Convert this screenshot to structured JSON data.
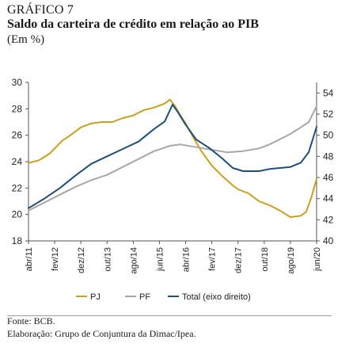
{
  "header": {
    "label": "GRÁFICO 7",
    "title": "Saldo da carteira de crédito em relação ao PIB",
    "subtitle": "(Em %)"
  },
  "footer": {
    "source": "Fonte: BCB.",
    "elaboration": "Elaboração: Grupo de Conjuntura da Dimac/Ipea."
  },
  "chart_data": {
    "type": "line",
    "x_tick_labels": [
      "abr/11",
      "fev/12",
      "dez/12",
      "out/13",
      "ago/14",
      "jun/15",
      "abr/16",
      "fev/17",
      "dez/17",
      "out/18",
      "ago/19",
      "jun/20"
    ],
    "x_tick_months": [
      "2011-04",
      "2012-02",
      "2012-12",
      "2013-10",
      "2014-08",
      "2015-06",
      "2016-04",
      "2017-02",
      "2017-12",
      "2018-10",
      "2019-08",
      "2020-06"
    ],
    "x_range": [
      "2011-04",
      "2020-06"
    ],
    "left_axis": {
      "ylim": [
        18,
        30
      ],
      "ticks": [
        18,
        20,
        22,
        24,
        26,
        28,
        30
      ]
    },
    "right_axis": {
      "ylim": [
        40,
        55
      ],
      "ticks": [
        40,
        42,
        44,
        46,
        48,
        50,
        52,
        54
      ]
    },
    "grid": false,
    "legend_position": "bottom",
    "series": [
      {
        "name": "PJ",
        "axis": "left",
        "color": "#c8a020",
        "points": [
          [
            "2011-04",
            23.9
          ],
          [
            "2011-08",
            24.1
          ],
          [
            "2011-12",
            24.6
          ],
          [
            "2012-02",
            25.0
          ],
          [
            "2012-05",
            25.6
          ],
          [
            "2012-08",
            26.0
          ],
          [
            "2012-12",
            26.6
          ],
          [
            "2013-04",
            26.9
          ],
          [
            "2013-08",
            27.0
          ],
          [
            "2013-12",
            27.0
          ],
          [
            "2014-04",
            27.3
          ],
          [
            "2014-08",
            27.5
          ],
          [
            "2014-12",
            27.9
          ],
          [
            "2015-04",
            28.1
          ],
          [
            "2015-08",
            28.4
          ],
          [
            "2015-10",
            28.7
          ],
          [
            "2015-12",
            28.2
          ],
          [
            "2016-02",
            27.5
          ],
          [
            "2016-04",
            26.9
          ],
          [
            "2016-07",
            25.8
          ],
          [
            "2016-10",
            24.8
          ],
          [
            "2017-02",
            23.7
          ],
          [
            "2017-06",
            22.9
          ],
          [
            "2017-10",
            22.2
          ],
          [
            "2017-12",
            21.9
          ],
          [
            "2018-04",
            21.6
          ],
          [
            "2018-08",
            21.0
          ],
          [
            "2018-12",
            20.7
          ],
          [
            "2019-04",
            20.3
          ],
          [
            "2019-08",
            19.8
          ],
          [
            "2019-12",
            19.9
          ],
          [
            "2020-02",
            20.2
          ],
          [
            "2020-04",
            21.3
          ],
          [
            "2020-06",
            22.7
          ]
        ]
      },
      {
        "name": "PF",
        "axis": "left",
        "color": "#a8a8a8",
        "points": [
          [
            "2011-04",
            20.3
          ],
          [
            "2011-10",
            20.9
          ],
          [
            "2012-04",
            21.5
          ],
          [
            "2012-10",
            22.1
          ],
          [
            "2013-04",
            22.6
          ],
          [
            "2013-10",
            23.0
          ],
          [
            "2014-04",
            23.6
          ],
          [
            "2014-10",
            24.2
          ],
          [
            "2015-04",
            24.8
          ],
          [
            "2015-10",
            25.2
          ],
          [
            "2016-02",
            25.3
          ],
          [
            "2016-08",
            25.1
          ],
          [
            "2017-02",
            24.9
          ],
          [
            "2017-08",
            24.7
          ],
          [
            "2018-02",
            24.8
          ],
          [
            "2018-08",
            25.0
          ],
          [
            "2018-12",
            25.3
          ],
          [
            "2019-04",
            25.7
          ],
          [
            "2019-08",
            26.1
          ],
          [
            "2019-12",
            26.6
          ],
          [
            "2020-03",
            27.0
          ],
          [
            "2020-06",
            28.2
          ]
        ]
      },
      {
        "name": "Total (eixo direito)",
        "axis": "right",
        "color": "#1f4e79",
        "points": [
          [
            "2011-04",
            43.1
          ],
          [
            "2011-10",
            44.0
          ],
          [
            "2012-04",
            45.0
          ],
          [
            "2012-10",
            46.2
          ],
          [
            "2013-04",
            47.3
          ],
          [
            "2013-10",
            48.0
          ],
          [
            "2014-04",
            48.7
          ],
          [
            "2014-10",
            49.4
          ],
          [
            "2015-04",
            50.6
          ],
          [
            "2015-08",
            51.3
          ],
          [
            "2015-11",
            52.9
          ],
          [
            "2016-01",
            52.2
          ],
          [
            "2016-04",
            51.0
          ],
          [
            "2016-08",
            49.6
          ],
          [
            "2017-01",
            48.8
          ],
          [
            "2017-06",
            47.8
          ],
          [
            "2017-10",
            46.9
          ],
          [
            "2018-02",
            46.6
          ],
          [
            "2018-08",
            46.6
          ],
          [
            "2018-12",
            46.8
          ],
          [
            "2019-04",
            46.9
          ],
          [
            "2019-08",
            47.0
          ],
          [
            "2019-12",
            47.4
          ],
          [
            "2020-03",
            48.4
          ],
          [
            "2020-06",
            50.8
          ]
        ]
      }
    ]
  }
}
